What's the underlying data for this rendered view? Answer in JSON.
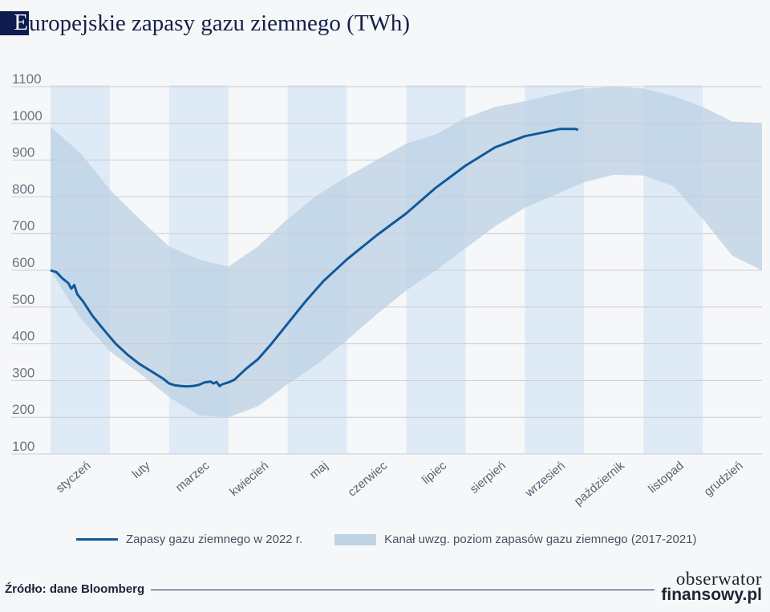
{
  "title_initial": "E",
  "title_rest": "uropejskie zapasy gazu ziemnego (TWh)",
  "colors": {
    "line": "#11599a",
    "band": "#bfd3e5",
    "month_shade": "#deebf6",
    "grid": "#c9ccd3"
  },
  "legend": {
    "line_label": "Zapasy gazu ziemnego w 2022 r.",
    "band_label": "Kanał uwzg. poziom zapasów gazu ziemnego (2017-2021)"
  },
  "source": "Źródło: dane Bloomberg",
  "logo": {
    "line1": "obserwator",
    "line2": "finansowy.pl"
  },
  "chart_data": {
    "type": "area",
    "title": "Europejskie zapasy gazu ziemnego (TWh)",
    "xlabel": "",
    "ylabel": "",
    "ylim": [
      100,
      1100
    ],
    "yticks": [
      100,
      200,
      300,
      400,
      500,
      600,
      700,
      800,
      900,
      1000,
      1100
    ],
    "categories": [
      "styczeń",
      "luty",
      "marzec",
      "kwiecień",
      "maj",
      "czerwiec",
      "lipiec",
      "sierpień",
      "wrzesień",
      "październik",
      "listopad",
      "grudzień"
    ],
    "x_unit": "month index (0 = start of January, 12 = end of December)",
    "series": [
      {
        "name": "Zapasy gazu ziemnego w 2022 r.",
        "kind": "line",
        "x": [
          0,
          0.1,
          0.2,
          0.3,
          0.35,
          0.4,
          0.45,
          0.55,
          0.7,
          0.9,
          1.1,
          1.3,
          1.5,
          1.7,
          1.9,
          2.0,
          2.1,
          2.2,
          2.3,
          2.4,
          2.5,
          2.6,
          2.7,
          2.75,
          2.8,
          2.85,
          2.9,
          3.0,
          3.1,
          3.3,
          3.5,
          3.7,
          4.0,
          4.3,
          4.6,
          5.0,
          5.5,
          6.0,
          6.5,
          7.0,
          7.5,
          8.0,
          8.3,
          8.6,
          8.85,
          8.9
        ],
        "values": [
          600,
          595,
          578,
          565,
          550,
          560,
          535,
          515,
          478,
          438,
          400,
          370,
          345,
          325,
          305,
          292,
          287,
          285,
          284,
          285,
          288,
          295,
          297,
          292,
          296,
          285,
          290,
          295,
          302,
          332,
          358,
          395,
          455,
          515,
          570,
          630,
          695,
          755,
          825,
          885,
          935,
          965,
          975,
          985,
          985,
          982
        ]
      },
      {
        "name": "Kanał uwzg. poziom zapasów gazu ziemnego (2017-2021)",
        "kind": "band",
        "x": [
          0,
          0.5,
          1.0,
          1.5,
          2.0,
          2.5,
          3.0,
          3.5,
          4.0,
          4.5,
          5.0,
          5.5,
          6.0,
          6.5,
          7.0,
          7.5,
          8.0,
          8.5,
          9.0,
          9.5,
          10.0,
          10.5,
          11.0,
          11.5,
          12.0
        ],
        "lower": [
          600,
          470,
          380,
          320,
          255,
          205,
          200,
          230,
          290,
          345,
          410,
          480,
          545,
          600,
          660,
          720,
          770,
          805,
          840,
          860,
          858,
          830,
          740,
          640,
          600
        ],
        "upper": [
          990,
          920,
          820,
          740,
          665,
          630,
          610,
          665,
          740,
          805,
          855,
          900,
          945,
          970,
          1015,
          1045,
          1060,
          1080,
          1095,
          1100,
          1095,
          1075,
          1045,
          1005,
          1000
        ]
      }
    ]
  }
}
